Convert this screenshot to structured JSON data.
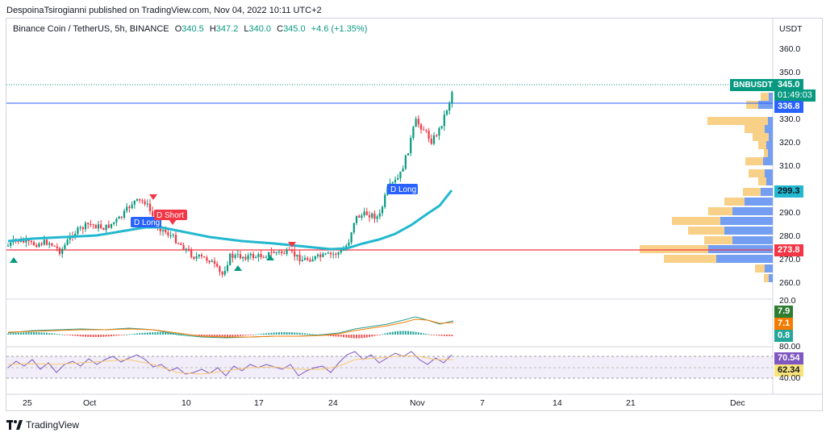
{
  "header": {
    "publisher": "DespoinaTsirogianni published on TradingView.com, Nov 04, 2022 10:11 UTC+2"
  },
  "legend": {
    "symbol": "Binance Coin / TetherUS, 5h, BINANCE",
    "o_label": "O",
    "o_value": "340.5",
    "h_label": "H",
    "h_value": "347.2",
    "l_label": "L",
    "l_value": "340.0",
    "c_label": "C",
    "c_value": "345.0",
    "change": "+4.6 (+1.35%)"
  },
  "price_axis": {
    "currency": "USDT",
    "ticks": [
      "360.0",
      "350.0",
      "330.0",
      "320.0",
      "310.0",
      "290.0",
      "280.0",
      "270.0",
      "260.0"
    ]
  },
  "price_badges": {
    "symbol": "BNBUSDT",
    "last": "345.0",
    "countdown": "01:49:03",
    "blue_line": "336.8",
    "ema": "299.3",
    "red_line": "273.8"
  },
  "macd": {
    "top_tick": "20.0",
    "v1": "7.9",
    "v2": "7.1",
    "v3": "0.8"
  },
  "rsi": {
    "top_tick": "80.00",
    "bottom_tick": "40.00",
    "v1": "70.54",
    "v2": "62.34"
  },
  "time_axis": [
    "25",
    "Oct",
    "10",
    "17",
    "24",
    "Nov",
    "7",
    "14",
    "21",
    "Dec"
  ],
  "signals": {
    "d_long_1": "D Long",
    "d_short": "D Short",
    "d_long_2": "D Long"
  },
  "footer": {
    "brand": "TradingView"
  },
  "colors": {
    "up": "#089981",
    "down": "#f23645",
    "ema": "#22b8cf",
    "blue_line": "#2962ff",
    "red_line": "#f23645",
    "vp_up": "#5b8def",
    "vp_down": "#f7c873",
    "rsi": "#7e57c2"
  }
}
